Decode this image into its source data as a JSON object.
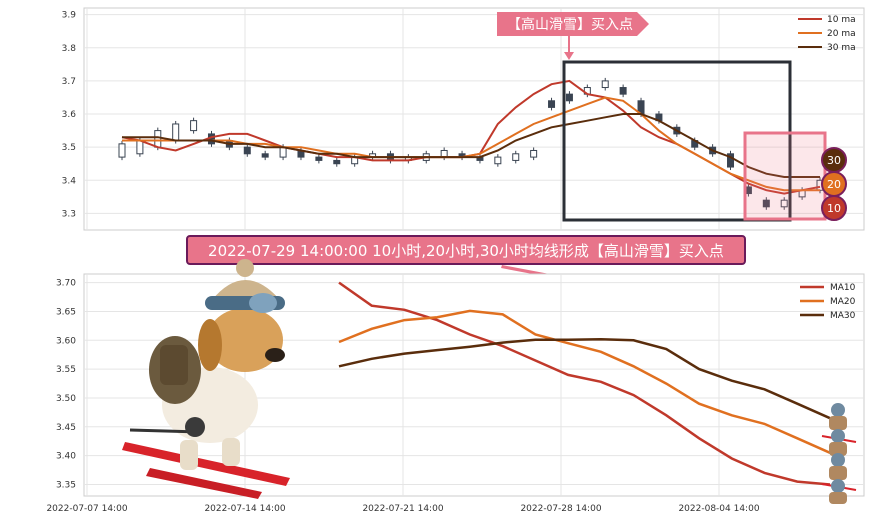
{
  "chart_data": [
    {
      "type": "candlestick",
      "ylim": [
        3.25,
        3.92
      ],
      "yticks": [
        "3.9",
        "3.8",
        "3.7",
        "3.6",
        "3.5",
        "3.4",
        "3.3"
      ],
      "legend": {
        "placement": "top-right",
        "entries": [
          "10 ma",
          "20 ma",
          "30 ma"
        ]
      },
      "grid": true,
      "series": [
        {
          "name": "10 ma",
          "color": "#c0392b",
          "values": [
            3.53,
            3.52,
            3.5,
            3.49,
            3.51,
            3.53,
            3.54,
            3.54,
            3.52,
            3.5,
            3.49,
            3.48,
            3.47,
            3.47,
            3.46,
            3.46,
            3.46,
            3.47,
            3.47,
            3.47,
            3.48,
            3.57,
            3.62,
            3.66,
            3.69,
            3.7,
            3.66,
            3.65,
            3.61,
            3.56,
            3.53,
            3.51,
            3.48,
            3.45,
            3.42,
            3.39,
            3.37,
            3.36,
            3.37,
            3.38
          ]
        },
        {
          "name": "20 ma",
          "color": "#e07020",
          "values": [
            3.52,
            3.52,
            3.52,
            3.52,
            3.52,
            3.52,
            3.52,
            3.51,
            3.51,
            3.5,
            3.5,
            3.49,
            3.48,
            3.48,
            3.47,
            3.47,
            3.47,
            3.47,
            3.47,
            3.47,
            3.48,
            3.51,
            3.54,
            3.57,
            3.59,
            3.61,
            3.63,
            3.65,
            3.64,
            3.6,
            3.55,
            3.51,
            3.48,
            3.45,
            3.42,
            3.4,
            3.38,
            3.37,
            3.37,
            3.37
          ]
        },
        {
          "name": "30 ma",
          "color": "#5a2d0c",
          "values": [
            3.53,
            3.53,
            3.53,
            3.52,
            3.52,
            3.52,
            3.51,
            3.51,
            3.5,
            3.5,
            3.49,
            3.48,
            3.48,
            3.47,
            3.47,
            3.47,
            3.47,
            3.47,
            3.47,
            3.47,
            3.47,
            3.49,
            3.52,
            3.54,
            3.56,
            3.57,
            3.58,
            3.59,
            3.6,
            3.6,
            3.58,
            3.55,
            3.52,
            3.49,
            3.47,
            3.44,
            3.42,
            3.41,
            3.41,
            3.41
          ]
        }
      ],
      "candles_sample": [
        [
          3.47,
          3.51
        ],
        [
          3.48,
          3.52
        ],
        [
          3.5,
          3.55
        ],
        [
          3.52,
          3.57
        ],
        [
          3.55,
          3.58
        ],
        [
          3.54,
          3.51
        ],
        [
          3.52,
          3.5
        ],
        [
          3.5,
          3.48
        ],
        [
          3.48,
          3.47
        ],
        [
          3.47,
          3.5
        ],
        [
          3.49,
          3.47
        ],
        [
          3.47,
          3.46
        ],
        [
          3.46,
          3.45
        ],
        [
          3.45,
          3.47
        ],
        [
          3.47,
          3.48
        ],
        [
          3.48,
          3.46
        ],
        [
          3.46,
          3.47
        ],
        [
          3.46,
          3.48
        ],
        [
          3.47,
          3.49
        ],
        [
          3.48,
          3.47
        ],
        [
          3.47,
          3.46
        ],
        [
          3.45,
          3.47
        ],
        [
          3.46,
          3.48
        ],
        [
          3.47,
          3.49
        ],
        [
          3.64,
          3.62
        ],
        [
          3.66,
          3.64
        ],
        [
          3.66,
          3.68
        ],
        [
          3.68,
          3.7
        ],
        [
          3.68,
          3.66
        ],
        [
          3.64,
          3.6
        ],
        [
          3.6,
          3.58
        ],
        [
          3.56,
          3.54
        ],
        [
          3.52,
          3.5
        ],
        [
          3.5,
          3.48
        ],
        [
          3.48,
          3.44
        ],
        [
          3.38,
          3.36
        ],
        [
          3.34,
          3.32
        ],
        [
          3.32,
          3.34
        ],
        [
          3.35,
          3.37
        ],
        [
          3.37,
          3.4
        ]
      ],
      "markers": [
        {
          "label": "30",
          "value": 3.46,
          "color": "#5a2d0c"
        },
        {
          "label": "20",
          "value": 3.4,
          "color": "#e07020"
        },
        {
          "label": "10",
          "value": 3.32,
          "color": "#c0392b"
        }
      ],
      "signal_label": "【高山滑雪】买入点"
    },
    {
      "type": "line",
      "ylim": [
        3.33,
        3.715
      ],
      "yticks": [
        "3.70",
        "3.65",
        "3.60",
        "3.55",
        "3.50",
        "3.45",
        "3.40",
        "3.35"
      ],
      "xticks": [
        "2022-07-07 14:00",
        "2022-07-14 14:00",
        "2022-07-21 14:00",
        "2022-07-28 14:00",
        "2022-08-04 14:00"
      ],
      "legend": {
        "placement": "top-right",
        "entries": [
          "MA10",
          "MA20",
          "MA30"
        ]
      },
      "grid": true,
      "series": [
        {
          "name": "MA10",
          "color": "#c0392b",
          "values": [
            3.7,
            3.66,
            3.653,
            3.635,
            3.61,
            3.59,
            3.565,
            3.54,
            3.528,
            3.505,
            3.47,
            3.43,
            3.395,
            3.37,
            3.355,
            3.35
          ]
        },
        {
          "name": "MA20",
          "color": "#e07020",
          "values": [
            3.597,
            3.62,
            3.635,
            3.64,
            3.651,
            3.645,
            3.61,
            3.595,
            3.58,
            3.555,
            3.525,
            3.49,
            3.47,
            3.455,
            3.43,
            3.405
          ]
        },
        {
          "name": "MA30",
          "color": "#5a2d0c",
          "values": [
            3.555,
            3.568,
            3.577,
            3.583,
            3.589,
            3.596,
            3.601,
            3.601,
            3.602,
            3.6,
            3.585,
            3.55,
            3.53,
            3.515,
            3.49,
            3.465
          ]
        }
      ]
    }
  ],
  "banner": {
    "text": "2022-07-29 14:00:00 10小时,20小时,30小时均线形成【高山滑雪】买入点"
  }
}
